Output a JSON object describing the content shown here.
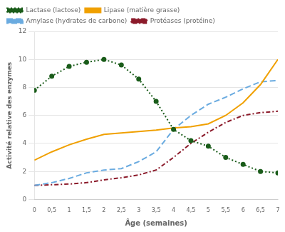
{
  "chart_data": {
    "type": "line",
    "x_label": "Âge (semaines)",
    "y_label": "Activité relative des enzymes",
    "x": [
      0,
      0.5,
      1,
      1.5,
      2,
      2.5,
      3,
      3.5,
      4,
      4.5,
      5,
      5.5,
      6,
      6.5,
      7
    ],
    "series": [
      {
        "name": "Lactase (lactose)",
        "color": "#1a5c1a",
        "line_style": "dotted",
        "marker": "circle",
        "values": [
          7.8,
          8.8,
          9.5,
          9.8,
          10.0,
          9.6,
          8.6,
          7.0,
          5.0,
          4.2,
          3.8,
          3.0,
          2.5,
          2.0,
          1.9
        ]
      },
      {
        "name": "Lipase (matière grasse)",
        "color": "#f0a000",
        "line_style": "solid",
        "marker": "none",
        "values": [
          2.8,
          3.4,
          3.9,
          4.3,
          4.65,
          4.75,
          4.85,
          4.95,
          5.1,
          5.2,
          5.4,
          6.0,
          6.9,
          8.2,
          10.0
        ]
      },
      {
        "name": "Amylase (hydrates de carbone)",
        "color": "#6aabe0",
        "line_style": "dashed",
        "marker": "none",
        "values": [
          1.0,
          1.2,
          1.5,
          1.9,
          2.1,
          2.2,
          2.7,
          3.4,
          5.0,
          6.0,
          6.8,
          7.3,
          7.9,
          8.4,
          8.5
        ]
      },
      {
        "name": "Protéases (protéine)",
        "color": "#8b1a2a",
        "line_style": "dashdot",
        "marker": "none",
        "values": [
          1.0,
          1.05,
          1.1,
          1.2,
          1.4,
          1.55,
          1.75,
          2.1,
          3.0,
          4.0,
          4.8,
          5.5,
          6.0,
          6.2,
          6.3
        ]
      }
    ],
    "xlim": [
      0,
      7
    ],
    "ylim": [
      0,
      12
    ],
    "xticks": [
      0,
      {
        "value": 0.5,
        "label": "0,5"
      },
      1,
      {
        "value": 1.5,
        "label": "1,5"
      },
      2,
      {
        "value": 2.5,
        "label": "2,5"
      },
      3,
      {
        "value": 3.5,
        "label": "3,5"
      },
      4,
      {
        "value": 4.5,
        "label": "4,5"
      },
      5,
      {
        "value": 5.5,
        "label": "5,5"
      },
      6,
      {
        "value": 6.5,
        "label": "6,5"
      },
      7
    ],
    "yticks": [
      0,
      2,
      4,
      6,
      8,
      10,
      12
    ],
    "grid": "y",
    "legend": "top"
  }
}
